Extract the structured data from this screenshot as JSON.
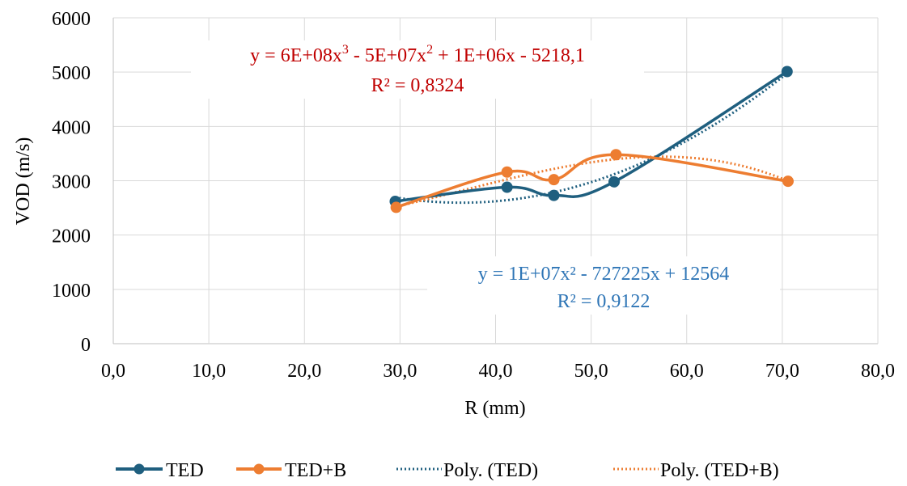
{
  "chart_data": {
    "type": "line",
    "xlabel": "R (mm)",
    "ylabel": "VOD (m/s)",
    "xlim": [
      0,
      80
    ],
    "ylim": [
      0,
      6000
    ],
    "x_ticks": [
      0,
      10,
      20,
      30,
      40,
      50,
      60,
      70,
      80
    ],
    "x_tick_labels": [
      "0,0",
      "10,0",
      "20,0",
      "30,0",
      "40,0",
      "50,0",
      "60,0",
      "70,0",
      "80,0"
    ],
    "y_ticks": [
      0,
      1000,
      2000,
      3000,
      4000,
      5000,
      6000
    ],
    "y_tick_labels": [
      "0",
      "1000",
      "2000",
      "3000",
      "4000",
      "5000",
      "6000"
    ],
    "grid": true,
    "legend_position": "bottom",
    "series": [
      {
        "name": "TED",
        "color": "#1f5f7f",
        "style": "smoothed-line-markers",
        "x": [
          29.5,
          41.2,
          46.1,
          52.4,
          70.5
        ],
        "y": [
          2620,
          2880,
          2730,
          2980,
          5010
        ]
      },
      {
        "name": "TED+B",
        "color": "#ed7d31",
        "style": "smoothed-line-markers",
        "x": [
          29.6,
          41.2,
          46.1,
          52.6,
          70.6
        ],
        "y": [
          2510,
          3160,
          3020,
          3480,
          2990
        ]
      },
      {
        "name": "Poly. (TED)",
        "color": "#1f5f7f",
        "style": "dotted-trendline",
        "trend_of": "TED"
      },
      {
        "name": "Poly. (TED+B)",
        "color": "#ed7d31",
        "style": "dotted-trendline",
        "trend_of": "TED+B"
      }
    ],
    "annotations": [
      {
        "id": "eq_red",
        "color": "#c00000",
        "line1_parts": [
          "y = 6E+08x",
          "3",
          " - 5E+07x",
          "2",
          " + 1E+06x - 5218,1"
        ],
        "line2": "R² = 0,8324"
      },
      {
        "id": "eq_blue",
        "color": "#2e75b6",
        "line1": "y = 1E+07x² - 727225x + 12564",
        "line2": "R² = 0,9122"
      }
    ]
  }
}
